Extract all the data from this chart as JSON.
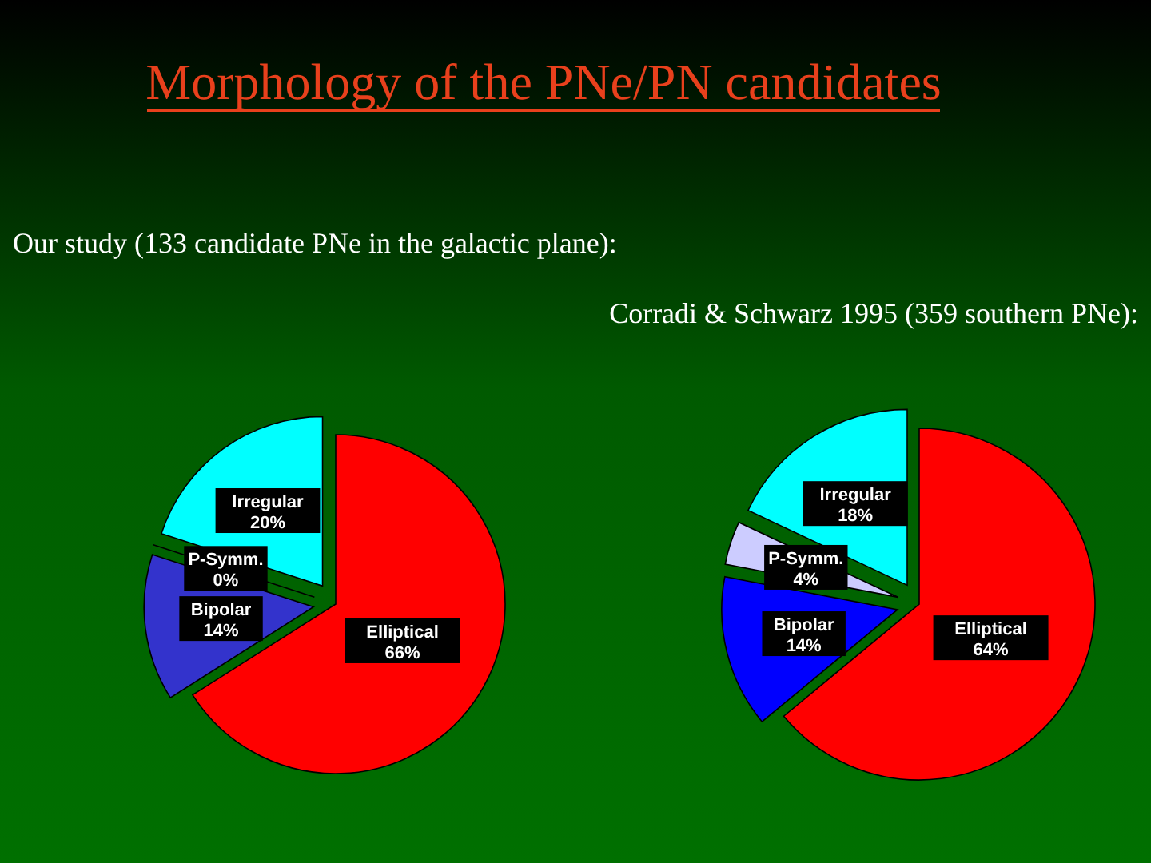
{
  "chart_data": [
    {
      "type": "pie",
      "title": "Morphology of the PNe/PN candidates",
      "subtitle": "Our study (133 candidate PNe in the galactic plane):",
      "categories": [
        "Elliptical",
        "Bipolar",
        "P-Symm.",
        "Irregular"
      ],
      "values": [
        66,
        14,
        0,
        20
      ],
      "value_labels": [
        "66%",
        "14%",
        "0%",
        "20%"
      ],
      "colors": [
        "#ff0000",
        "#3333cc",
        "#ccccff",
        "#00ffff"
      ],
      "data_labels": true,
      "legend": false
    },
    {
      "type": "pie",
      "subtitle": "Corradi & Schwarz 1995 (359 southern PNe):",
      "categories": [
        "Elliptical",
        "Bipolar",
        "P-Symm.",
        "Irregular"
      ],
      "values": [
        64,
        14,
        4,
        18
      ],
      "value_labels": [
        "64%",
        "14%",
        "4%",
        "18%"
      ],
      "colors": [
        "#ff0000",
        "#0000ff",
        "#ccccff",
        "#00ffff"
      ],
      "data_labels": true,
      "legend": false
    }
  ]
}
